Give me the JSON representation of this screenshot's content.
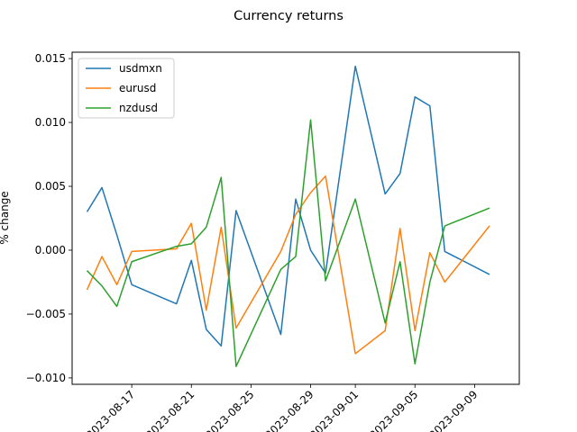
{
  "chart_data": {
    "type": "line",
    "title": "Currency returns",
    "xlabel": "",
    "ylabel": "% change",
    "ylim": [
      -0.0105,
      0.0155
    ],
    "xlim": [
      "2023-08-13",
      "2023-09-12"
    ],
    "y_ticks": [
      "−0.010",
      "−0.005",
      "0.000",
      "0.005",
      "0.010",
      "0.015"
    ],
    "x_ticks": [
      "2023-08-17",
      "2023-08-21",
      "2023-08-25",
      "2023-08-29",
      "2023-09-01",
      "2023-09-05",
      "2023-09-09"
    ],
    "grid": false,
    "legend_position": "top-left",
    "x": [
      "2023-08-14",
      "2023-08-15",
      "2023-08-16",
      "2023-08-17",
      "2023-08-20",
      "2023-08-21",
      "2023-08-22",
      "2023-08-23",
      "2023-08-24",
      "2023-08-27",
      "2023-08-28",
      "2023-08-29",
      "2023-08-30",
      "2023-09-01",
      "2023-09-03",
      "2023-09-04",
      "2023-09-05",
      "2023-09-06",
      "2023-09-07",
      "2023-09-10"
    ],
    "series": [
      {
        "name": "usdmxn",
        "color": "#1f77b4",
        "values": [
          0.003,
          0.0049,
          0.0012,
          -0.0027,
          -0.0042,
          -0.0008,
          -0.0062,
          -0.0075,
          0.0031,
          -0.0066,
          0.004,
          0.0,
          -0.0018,
          0.0144,
          0.0044,
          0.006,
          0.012,
          0.0113,
          -0.0001,
          -0.0019
        ]
      },
      {
        "name": "eurusd",
        "color": "#ff7f0e",
        "values": [
          -0.0031,
          -0.0005,
          -0.0027,
          -0.0001,
          0.0001,
          0.0021,
          -0.0047,
          0.0018,
          -0.0061,
          -0.0001,
          0.0028,
          0.0045,
          0.0058,
          -0.0081,
          -0.0063,
          0.0017,
          -0.0063,
          -0.0002,
          -0.0025,
          0.0019
        ]
      },
      {
        "name": "nzdusd",
        "color": "#2ca02c",
        "values": [
          -0.0016,
          -0.0028,
          -0.0044,
          -0.0009,
          0.0003,
          0.0005,
          0.0018,
          0.0057,
          -0.0091,
          -0.0015,
          -0.0005,
          0.0102,
          -0.0024,
          0.004,
          -0.0057,
          -0.0009,
          -0.0089,
          -0.0025,
          0.0019,
          0.0033
        ]
      }
    ]
  }
}
